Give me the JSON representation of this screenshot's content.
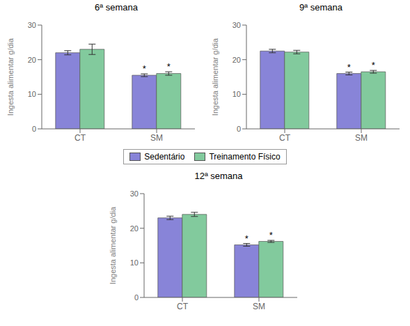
{
  "chart_data": [
    {
      "type": "bar",
      "title": "6ª semana",
      "categories": [
        "CT",
        "SM"
      ],
      "ylabel": "Ingesta alimentar g/dia",
      "ylim": [
        0,
        30
      ],
      "yticks": [
        0,
        10,
        20,
        30
      ],
      "legend": "center",
      "series": [
        {
          "name": "Sedentário",
          "color": "#8884d8",
          "values": [
            22.0,
            15.5
          ],
          "errors": [
            0.6,
            0.4
          ]
        },
        {
          "name": "Treinamento Físico",
          "color": "#82ca9d",
          "values": [
            23.0,
            16.0
          ],
          "errors": [
            1.5,
            0.5
          ]
        }
      ],
      "annotations": [
        {
          "series": "Sedentário",
          "category": "SM",
          "text": "*"
        },
        {
          "series": "Treinamento Físico",
          "category": "SM",
          "text": "*"
        }
      ]
    },
    {
      "type": "bar",
      "title": "9ª semana",
      "categories": [
        "CT",
        "SM"
      ],
      "ylabel": "Ingesta alimentar g/dia",
      "ylim": [
        0,
        30
      ],
      "yticks": [
        0,
        10,
        20,
        30
      ],
      "series": [
        {
          "name": "Sedentário",
          "color": "#8884d8",
          "values": [
            22.5,
            16.0
          ],
          "errors": [
            0.5,
            0.4
          ]
        },
        {
          "name": "Treinamento Físico",
          "color": "#82ca9d",
          "values": [
            22.2,
            16.5
          ],
          "errors": [
            0.5,
            0.4
          ]
        }
      ],
      "annotations": [
        {
          "series": "Sedentário",
          "category": "SM",
          "text": "*"
        },
        {
          "series": "Treinamento Físico",
          "category": "SM",
          "text": "*"
        }
      ]
    },
    {
      "type": "bar",
      "title": "12ª semana",
      "categories": [
        "CT",
        "SM"
      ],
      "ylabel": "Ingesta alimentar g/dia",
      "ylim": [
        0,
        30
      ],
      "yticks": [
        0,
        10,
        20,
        30
      ],
      "series": [
        {
          "name": "Sedentário",
          "color": "#8884d8",
          "values": [
            23.0,
            15.2
          ],
          "errors": [
            0.5,
            0.4
          ]
        },
        {
          "name": "Treinamento Físico",
          "color": "#82ca9d",
          "values": [
            24.0,
            16.2
          ],
          "errors": [
            0.6,
            0.3
          ]
        }
      ],
      "annotations": [
        {
          "series": "Sedentário",
          "category": "SM",
          "text": "*"
        },
        {
          "series": "Treinamento Físico",
          "category": "SM",
          "text": "*"
        }
      ]
    }
  ]
}
